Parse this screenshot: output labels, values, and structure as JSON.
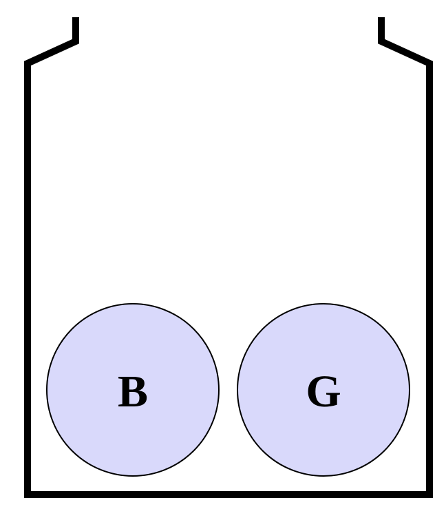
{
  "diagram": {
    "container": {
      "stroke_color": "#000000"
    },
    "balls": [
      {
        "label": "B",
        "fill": "#d9d9fb",
        "stroke": "#000000"
      },
      {
        "label": "G",
        "fill": "#d9d9fb",
        "stroke": "#000000"
      }
    ]
  }
}
